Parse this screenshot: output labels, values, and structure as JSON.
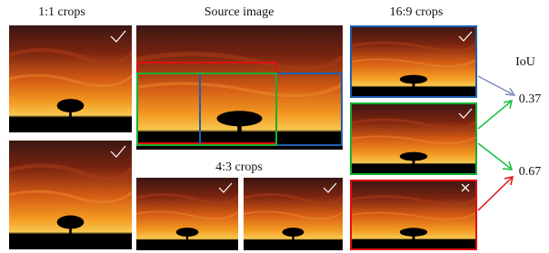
{
  "titles": {
    "square": "1:1 crops",
    "source": "Source image",
    "wide": "16:9 crops",
    "standard": "4:3 crops"
  },
  "iou": {
    "label": "IoU",
    "values": [
      0.37,
      0.67
    ]
  }
}
